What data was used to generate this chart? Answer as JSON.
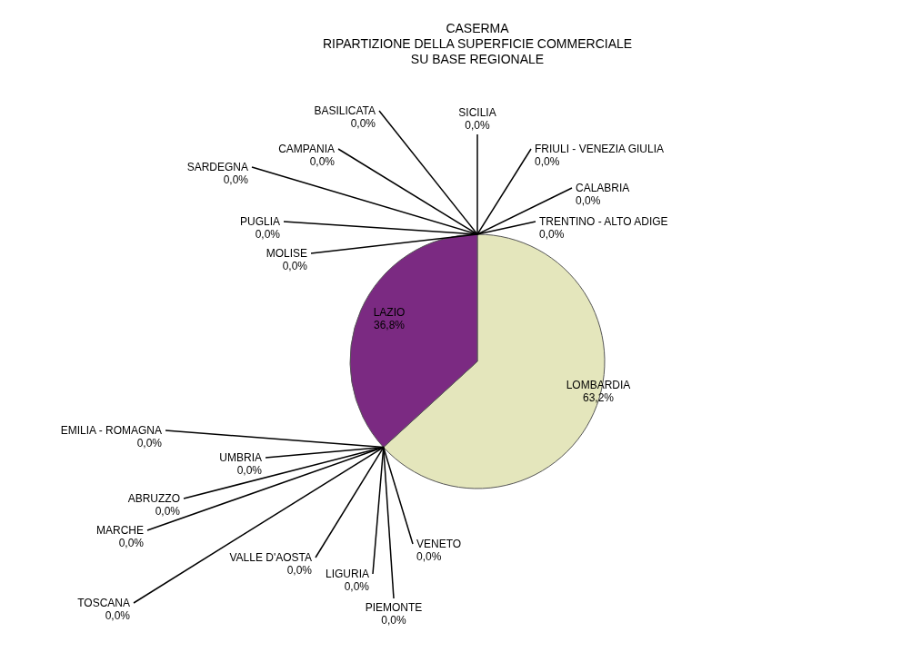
{
  "chart_data": {
    "type": "pie",
    "title": "CASERMA\nRIPARTIZIONE DELLA SUPERFICIE COMMERCIALE\nSU BASE REGIONALE",
    "categories": [
      "LOMBARDIA",
      "VENETO",
      "PIEMONTE",
      "VALLE D'AOSTA",
      "LIGURIA",
      "TOSCANA",
      "MARCHE",
      "ABRUZZO",
      "UMBRIA",
      "EMILIA - ROMAGNA",
      "LAZIO",
      "MOLISE",
      "PUGLIA",
      "SARDEGNA",
      "CAMPANIA",
      "BASILICATA",
      "SICILIA",
      "CALABRIA",
      "FRIULI - VENEZIA GIULIA",
      "TRENTINO - ALTO ADIGE"
    ],
    "values": [
      63.2,
      0,
      0,
      0,
      0,
      0,
      0,
      0,
      0,
      0,
      36.8,
      0,
      0,
      0,
      0,
      0,
      0,
      0,
      0,
      0
    ],
    "value_labels": [
      "63,2%",
      "0,0%",
      "0,0%",
      "0,0%",
      "0,0%",
      "0,0%",
      "0,0%",
      "0,0%",
      "0,0%",
      "0,0%",
      "36,8%",
      "0,0%",
      "0,0%",
      "0,0%",
      "0,0%",
      "0,0%",
      "0,0%",
      "0,0%",
      "0,0%",
      "0,0%"
    ],
    "colors": [
      "#e4e6bc",
      "#808080",
      "#808080",
      "#808080",
      "#808080",
      "#808080",
      "#808080",
      "#808080",
      "#808080",
      "#808080",
      "#7b2a82",
      "#808080",
      "#808080",
      "#808080",
      "#808080",
      "#808080",
      "#808080",
      "#808080",
      "#808080",
      "#808080"
    ]
  }
}
